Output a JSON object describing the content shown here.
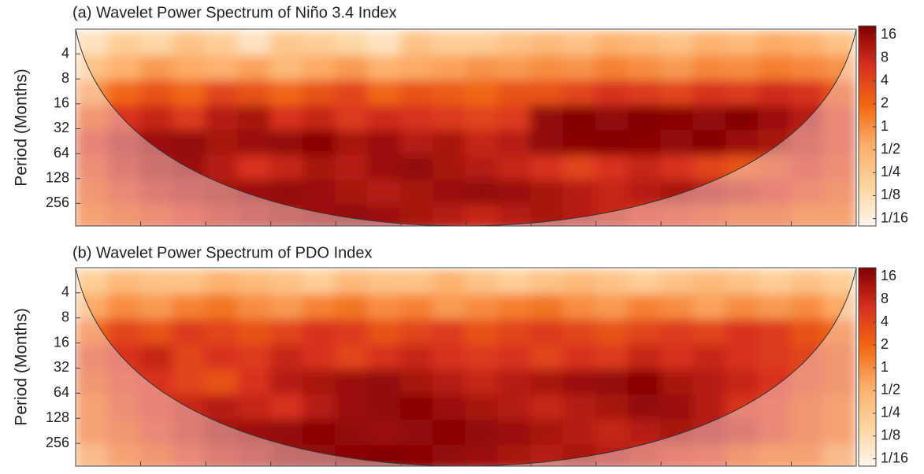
{
  "chart_data": [
    {
      "type": "heatmap",
      "title": "(a) Wavelet Power Spectrum of Niño 3.4 Index",
      "ylabel": "Period (Months)",
      "y": [
        3,
        6,
        12,
        24,
        48,
        96,
        192,
        384
      ],
      "values": [
        [
          0.1,
          0.2,
          0.15,
          0.3,
          0.2,
          0.1,
          0.25,
          0.2,
          0.15,
          0.1,
          0.3,
          0.2,
          0.2,
          0.3,
          0.4,
          0.3,
          0.5,
          0.4,
          0.3,
          0.5,
          0.4,
          0.6,
          0.5,
          0.3
        ],
        [
          0.3,
          0.5,
          0.8,
          0.6,
          0.5,
          0.7,
          0.4,
          0.6,
          0.8,
          0.5,
          0.6,
          0.7,
          0.9,
          0.8,
          1,
          0.9,
          1.2,
          1,
          0.8,
          1.1,
          1,
          1.3,
          1.1,
          0.9
        ],
        [
          1,
          2,
          3,
          2,
          4,
          3,
          2,
          3,
          4,
          2,
          3,
          2.5,
          2,
          3,
          3,
          4,
          6,
          5,
          4,
          6,
          5,
          7,
          6,
          3
        ],
        [
          3,
          6,
          8,
          5,
          10,
          12,
          6,
          8,
          5,
          7,
          6,
          5,
          4,
          5,
          16,
          20,
          16,
          20,
          18,
          16,
          20,
          14,
          10,
          5
        ],
        [
          6,
          10,
          14,
          16,
          12,
          14,
          16,
          18,
          12,
          14,
          10,
          12,
          8,
          10,
          16,
          18,
          20,
          18,
          16,
          20,
          14,
          12,
          8,
          5
        ],
        [
          4,
          8,
          12,
          14,
          10,
          6,
          8,
          12,
          10,
          14,
          16,
          12,
          10,
          8,
          6,
          4,
          6,
          8,
          6,
          4,
          3,
          4,
          6,
          4
        ],
        [
          3,
          5,
          8,
          10,
          12,
          14,
          16,
          14,
          12,
          10,
          12,
          14,
          16,
          14,
          12,
          10,
          8,
          10,
          12,
          10,
          8,
          6,
          4,
          3
        ],
        [
          2,
          3,
          4,
          6,
          8,
          10,
          12,
          14,
          16,
          14,
          12,
          10,
          8,
          10,
          12,
          10,
          8,
          6,
          5,
          4,
          3,
          3,
          2,
          2
        ]
      ],
      "ylim": [
        2,
        480
      ],
      "log_y": true,
      "yticks": [
        4,
        8,
        16,
        32,
        64,
        128,
        256
      ],
      "clim": [
        0.05,
        21
      ],
      "log_c": true,
      "cticks": [
        16,
        8,
        4,
        2,
        1,
        {
          "value": 0.5,
          "label": "1/2"
        },
        {
          "value": 0.25,
          "label": "1/4"
        },
        {
          "value": 0.125,
          "label": "1/8"
        },
        {
          "value": 0.0625,
          "label": "1/16"
        }
      ],
      "colormap": [
        "#fff5eb",
        "#fdd49e",
        "#fdae6b",
        "#f16913",
        "#d7301f",
        "#7f0000"
      ]
    },
    {
      "type": "heatmap",
      "title": "(b) Wavelet Power Spectrum of PDO Index",
      "ylabel": "Period (Months)",
      "y": [
        3,
        6,
        12,
        24,
        48,
        96,
        192,
        384
      ],
      "values": [
        [
          0.2,
          0.4,
          0.3,
          0.3,
          0.5,
          0.4,
          0.3,
          0.2,
          0.4,
          0.3,
          0.3,
          0.5,
          0.3,
          0.2,
          0.3,
          0.4,
          0.3,
          0.2,
          0.3,
          0.4,
          0.3,
          0.2,
          0.3,
          0.2
        ],
        [
          0.6,
          1,
          0.8,
          1.2,
          1.5,
          1,
          0.8,
          1.2,
          1.5,
          1,
          1.2,
          0.8,
          1,
          1.3,
          1.5,
          1,
          0.8,
          1.2,
          1,
          0.7,
          1,
          0.8,
          1,
          0.6
        ],
        [
          2,
          4,
          3,
          5,
          4,
          3,
          4,
          6,
          5,
          3,
          4,
          5,
          3,
          4,
          5,
          4,
          3,
          4,
          5,
          4,
          6,
          5,
          3,
          2
        ],
        [
          4,
          6,
          8,
          4,
          6,
          5,
          8,
          6,
          4,
          6,
          8,
          6,
          5,
          6,
          4,
          6,
          5,
          8,
          6,
          8,
          6,
          5,
          4,
          3
        ],
        [
          3,
          5,
          6,
          4,
          3,
          6,
          10,
          12,
          14,
          16,
          12,
          10,
          8,
          10,
          12,
          14,
          16,
          18,
          12,
          10,
          8,
          6,
          4,
          3
        ],
        [
          2,
          4,
          6,
          8,
          10,
          8,
          6,
          10,
          14,
          16,
          18,
          14,
          12,
          10,
          8,
          10,
          12,
          16,
          14,
          10,
          6,
          5,
          3,
          2
        ],
        [
          2,
          3,
          5,
          8,
          12,
          14,
          16,
          18,
          16,
          14,
          16,
          18,
          16,
          14,
          12,
          10,
          8,
          10,
          12,
          10,
          8,
          5,
          3,
          2
        ],
        [
          1,
          2,
          3,
          5,
          8,
          10,
          14,
          16,
          18,
          20,
          18,
          16,
          14,
          12,
          10,
          12,
          10,
          8,
          6,
          5,
          3,
          2,
          2,
          1
        ]
      ],
      "ylim": [
        2,
        480
      ],
      "log_y": true,
      "yticks": [
        4,
        8,
        16,
        32,
        64,
        128,
        256
      ],
      "clim": [
        0.05,
        21
      ],
      "log_c": true,
      "cticks": [
        16,
        8,
        4,
        2,
        1,
        {
          "value": 0.5,
          "label": "1/2"
        },
        {
          "value": 0.25,
          "label": "1/4"
        },
        {
          "value": 0.125,
          "label": "1/8"
        },
        {
          "value": 0.0625,
          "label": "1/16"
        }
      ],
      "colormap": [
        "#fff5eb",
        "#fdd49e",
        "#fdae6b",
        "#f16913",
        "#d7301f",
        "#7f0000"
      ]
    }
  ]
}
